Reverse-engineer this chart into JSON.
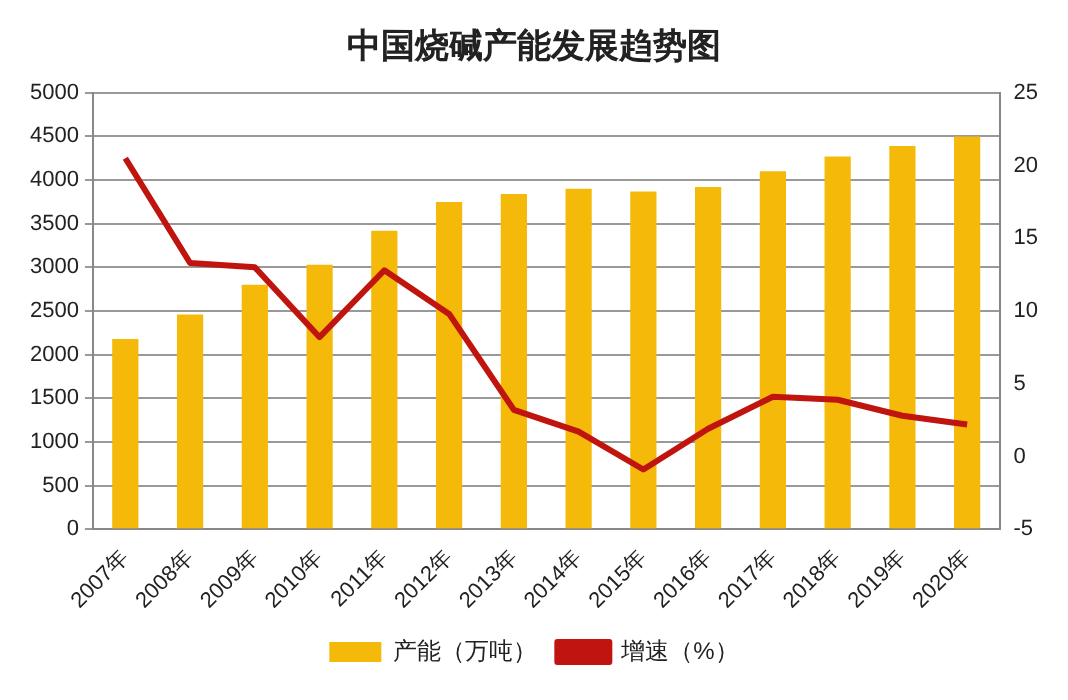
{
  "chart_data": {
    "type": "bar",
    "title": "中国烧碱产能发展趋势图",
    "categories": [
      "2007年",
      "2008年",
      "2009年",
      "2010年",
      "2011年",
      "2012年",
      "2013年",
      "2014年",
      "2015年",
      "2016年",
      "2017年",
      "2018年",
      "2019年",
      "2020年"
    ],
    "series": [
      {
        "name": "产能（万吨）",
        "color": "#f5b90a",
        "values": [
          2180,
          2460,
          2800,
          3030,
          3420,
          3750,
          3840,
          3900,
          3870,
          3920,
          4100,
          4270,
          4390,
          4500
        ]
      },
      {
        "name": "增速（%）",
        "type": "line",
        "axis": "y2",
        "color": "#c0150f",
        "values": [
          20.5,
          13.3,
          13.0,
          8.2,
          12.8,
          9.8,
          3.2,
          1.7,
          -0.9,
          1.9,
          4.1,
          3.9,
          2.8,
          2.2
        ]
      }
    ],
    "ylim": [
      0,
      5000
    ],
    "yticks": [
      0,
      500,
      1000,
      1500,
      2000,
      2500,
      3000,
      3500,
      4000,
      4500,
      5000
    ],
    "y2lim": [
      -5,
      25
    ],
    "y2ticks": [
      -5,
      0,
      5,
      10,
      15,
      20,
      25
    ],
    "grid": "y",
    "legend": "bottom",
    "marker": "none"
  }
}
